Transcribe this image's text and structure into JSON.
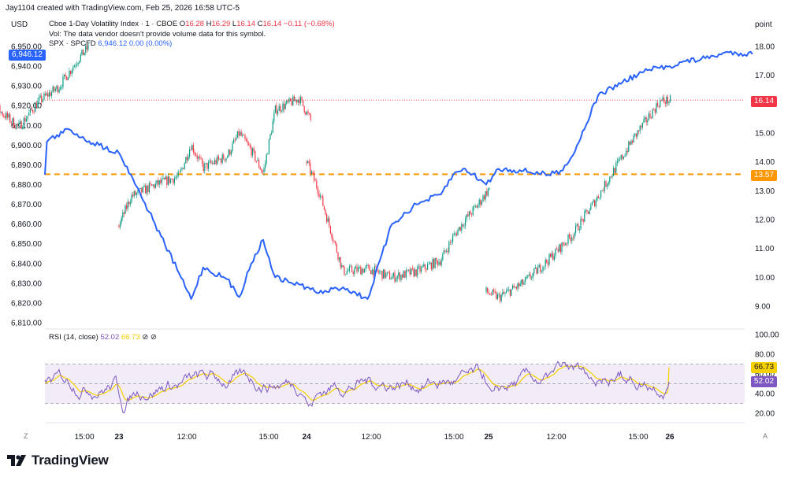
{
  "header": {
    "credit": "Jay1104 created with TradingView.com, Feb 25, 2026 16:58 UTC-5"
  },
  "legend": {
    "symbol": "Cboe 1-Day Volatility Index · 1 · CBOE",
    "open_label": "O",
    "open": "16.28",
    "high_label": "H",
    "high": "16.29",
    "low_label": "L",
    "low": "16.14",
    "close_label": "C",
    "close": "16.14",
    "change": "−0.11 (−0.68%)",
    "vol_note": "Vol: The data vendor doesn't provide volume data for this symbol.",
    "spx_label": "SPX · SPCFD",
    "spx_value": "6,946.12",
    "spx_change": "0.00 (0.00%)"
  },
  "axes": {
    "left_unit": "USD",
    "right_unit": "point",
    "left_ticks": [
      "6,950.00",
      "6,940.00",
      "6,930.00",
      "6,920.00",
      "6,910.00",
      "6,900.00",
      "6,890.00",
      "6,880.00",
      "6,870.00",
      "6,860.00",
      "6,850.00",
      "6,840.00",
      "6,830.00",
      "6,820.00",
      "6,810.00"
    ],
    "left_tick_values": [
      6950,
      6940,
      6930,
      6920,
      6910,
      6900,
      6890,
      6880,
      6870,
      6860,
      6850,
      6840,
      6830,
      6820,
      6810
    ],
    "right_ticks": [
      "18.00",
      "17.00",
      "16.00",
      "15.00",
      "14.00",
      "13.00",
      "12.00",
      "11.00",
      "10.00",
      "9.00"
    ],
    "right_tick_values": [
      18,
      17,
      16,
      15,
      14,
      13,
      12,
      11,
      10,
      9
    ],
    "rsi_ticks": [
      "100.00",
      "80.00",
      "60.00",
      "40.00",
      "20.00"
    ],
    "rsi_tick_values": [
      100,
      80,
      60,
      40,
      20
    ],
    "x_ticks": [
      "15:00",
      "23",
      "12:00",
      "15:00",
      "24",
      "12:00",
      "15:00",
      "25",
      "12:00",
      "15:00",
      "26"
    ],
    "x_tick_bold": [
      false,
      true,
      false,
      false,
      true,
      false,
      false,
      true,
      false,
      false,
      true
    ],
    "corner_left": "Z",
    "corner_right": "A"
  },
  "badges": {
    "spx_last": "6,946.12",
    "vix1d_last": "16.14",
    "orange_level": "13.57",
    "rsi_last": "52.02",
    "rsi_ma_last": "66.73"
  },
  "rsi_legend": {
    "label": "RSI (14, close)",
    "rsi_value": "52.02",
    "ma_value": "66.73"
  },
  "branding": {
    "logo_text": "TradingView"
  },
  "colors": {
    "spx_line": "#2962ff",
    "candle_up": "#089981",
    "candle_down": "#f23645",
    "orange_level": "#ff9800",
    "rsi_line": "#7e57c2",
    "rsi_ma": "#f7d000",
    "rsi_band": "#ede7f6"
  },
  "chart_data": {
    "type": "line",
    "title": "Cboe 1-Day Volatility Index · 1 · CBOE",
    "x_sessions": [
      "22 (afternoon)",
      "23",
      "24",
      "25",
      "26"
    ],
    "series": [
      {
        "name": "SPX · SPCFD",
        "axis": "left",
        "unit": "USD",
        "points": [
          [
            "22 09:30",
            6885
          ],
          [
            "22 10:00",
            6920
          ],
          [
            "22 11:30",
            6905
          ],
          [
            "22 13:00",
            6900
          ],
          [
            "22 14:30",
            6908
          ],
          [
            "22 15:30",
            6902
          ],
          [
            "22 16:00",
            6900
          ],
          [
            "23 09:30",
            6896
          ],
          [
            "23 10:00",
            6885
          ],
          [
            "23 11:00",
            6860
          ],
          [
            "23 12:00",
            6835
          ],
          [
            "23 12:30",
            6822
          ],
          [
            "23 13:00",
            6838
          ],
          [
            "23 14:00",
            6832
          ],
          [
            "23 14:30",
            6823
          ],
          [
            "23 15:00",
            6840
          ],
          [
            "23 15:30",
            6852
          ],
          [
            "23 16:00",
            6833
          ],
          [
            "24 09:30",
            6828
          ],
          [
            "24 10:00",
            6825
          ],
          [
            "24 11:00",
            6828
          ],
          [
            "24 12:00",
            6822
          ],
          [
            "24 13:00",
            6860
          ],
          [
            "24 14:00",
            6870
          ],
          [
            "24 15:00",
            6875
          ],
          [
            "24 15:30",
            6885
          ],
          [
            "24 16:00",
            6888
          ],
          [
            "25 09:30",
            6880
          ],
          [
            "25 10:00",
            6888
          ],
          [
            "25 11:00",
            6887
          ],
          [
            "25 12:00",
            6885
          ],
          [
            "25 12:30",
            6887
          ],
          [
            "25 13:00",
            6895
          ],
          [
            "25 14:00",
            6925
          ],
          [
            "25 15:00",
            6932
          ],
          [
            "25 16:00",
            6938
          ],
          [
            "26 09:30",
            6940
          ],
          [
            "26 10:00",
            6942
          ],
          [
            "26 11:00",
            6944
          ],
          [
            "26 12:00",
            6947
          ],
          [
            "26 13:00",
            6946.12
          ]
        ]
      },
      {
        "name": "Cboe 1-Day Volatility Index",
        "axis": "right",
        "unit": "point",
        "points": [
          [
            "22 10:00",
            16.4
          ],
          [
            "22 10:30",
            15.5
          ],
          [
            "22 11:00",
            15.8
          ],
          [
            "22 12:00",
            15.2
          ],
          [
            "22 13:00",
            16.1
          ],
          [
            "22 14:00",
            16.6
          ],
          [
            "22 14:30",
            17.1
          ],
          [
            "22 15:00",
            17.6
          ],
          [
            "22 15:30",
            18.0
          ],
          [
            "23 09:30",
            11.8
          ],
          [
            "23 10:00",
            12.8
          ],
          [
            "23 11:00",
            13.2
          ],
          [
            "23 12:00",
            13.5
          ],
          [
            "23 12:30",
            14.6
          ],
          [
            "23 13:00",
            13.8
          ],
          [
            "23 14:00",
            14.2
          ],
          [
            "23 14:30",
            15.0
          ],
          [
            "23 15:00",
            14.4
          ],
          [
            "23 15:30",
            13.6
          ],
          [
            "23 16:00",
            15.8
          ],
          [
            "23 16:30",
            16.0
          ],
          [
            "23 17:00",
            16.2
          ],
          [
            "23 17:30",
            15.4
          ],
          [
            "24 09:30",
            14.0
          ],
          [
            "24 10:00",
            13.0
          ],
          [
            "24 11:00",
            10.2
          ],
          [
            "24 12:00",
            10.3
          ],
          [
            "24 13:00",
            10.0
          ],
          [
            "24 14:00",
            10.2
          ],
          [
            "24 15:00",
            10.6
          ],
          [
            "24 15:30",
            11.4
          ],
          [
            "24 16:00",
            12.0
          ],
          [
            "24 16:30",
            12.5
          ],
          [
            "24 17:00",
            13.1
          ],
          [
            "25 09:30",
            9.5
          ],
          [
            "25 10:00",
            9.3
          ],
          [
            "25 11:00",
            9.8
          ],
          [
            "25 12:00",
            10.6
          ],
          [
            "25 13:00",
            11.5
          ],
          [
            "25 14:00",
            12.8
          ],
          [
            "25 15:00",
            14.2
          ],
          [
            "25 15:30",
            14.9
          ],
          [
            "25 16:00",
            15.5
          ],
          [
            "25 16:30",
            16.1
          ],
          [
            "25 16:58",
            16.14
          ]
        ]
      },
      {
        "name": "RSI (14, close)",
        "axis": "rsi",
        "last": 52.02,
        "ma_last": 66.73,
        "band": [
          30,
          70
        ]
      }
    ],
    "reference_lines": [
      {
        "label": "13.57",
        "axis": "right",
        "value": 13.57,
        "style": "dashed"
      },
      {
        "label": "16.14",
        "axis": "right",
        "value": 16.14,
        "style": "dotted"
      }
    ],
    "ylim_left": [
      6810,
      6950
    ],
    "ylim_right": [
      9,
      18
    ],
    "ylim_rsi": [
      20,
      100
    ],
    "grid": false
  }
}
